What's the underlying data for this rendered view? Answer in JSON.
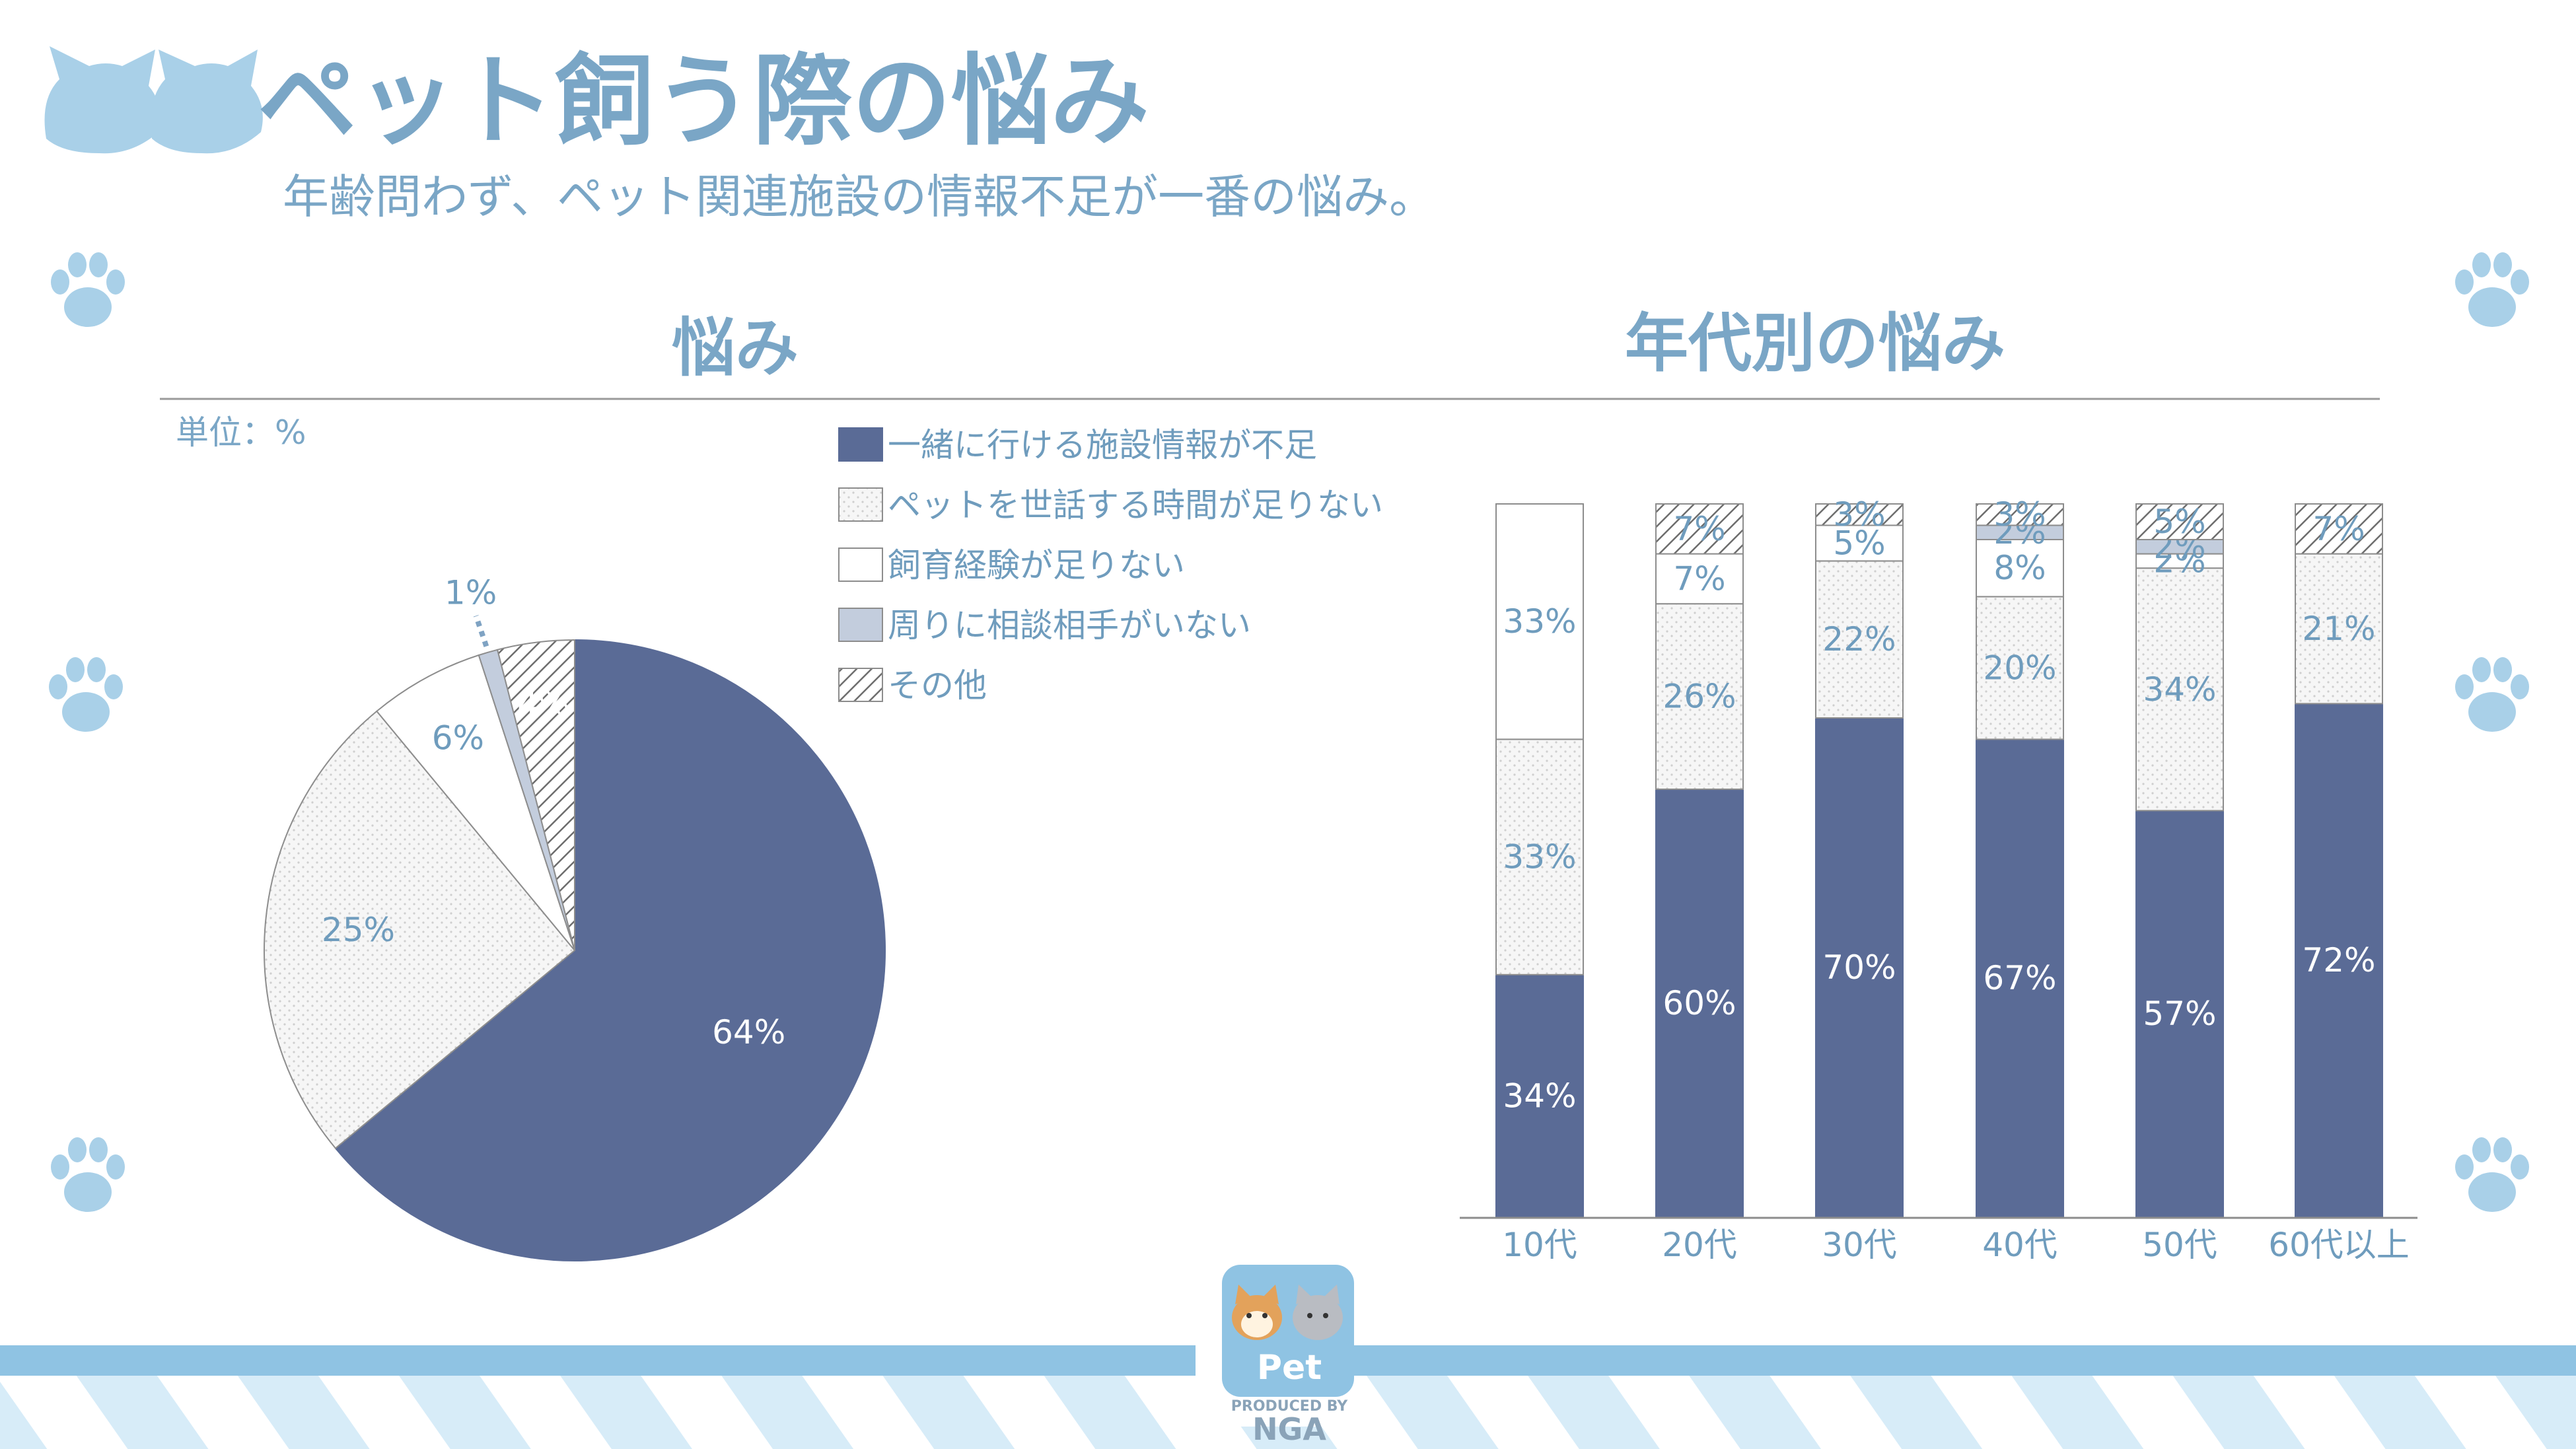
{
  "header": {
    "title": "ペット飼う際の悩み",
    "subtitle": "年齢問わず、ペット関連施設の情報不足が一番の悩み。"
  },
  "sections": {
    "left_title": "悩み",
    "right_title": "年代別の悩み",
    "unit": "単位：%"
  },
  "logo": {
    "label": "Pet",
    "produced_by": "PRODUCED BY",
    "brand": "NGA"
  },
  "colors": {
    "accent": "#7aa6c6",
    "series_navy": "#5a6b96",
    "series_light": "#c3cddd",
    "stripe": "#8fc3e3",
    "stripe_light": "#d7ecf8"
  },
  "icons": [
    "cat-heads-icon",
    "paw-icon",
    "pet-logo-icon"
  ],
  "chart_data": [
    {
      "type": "pie",
      "title": "悩み",
      "unit": "単位：%",
      "legend_position": "top-right",
      "slices": [
        {
          "name": "一緒に行ける施設情報が不足",
          "value": 64,
          "label": "64%"
        },
        {
          "name": "ペットを世話する時間が足りない",
          "value": 25,
          "label": "25%"
        },
        {
          "name": "飼育経験が足りない",
          "value": 6,
          "label": "6%"
        },
        {
          "name": "周りに相談相手がいない",
          "value": 1,
          "label": "1%"
        },
        {
          "name": "その他",
          "value": 4,
          "label": "4%"
        }
      ]
    },
    {
      "type": "bar",
      "stacked": true,
      "title": "年代別の悩み",
      "categories": [
        "10代",
        "20代",
        "30代",
        "40代",
        "50代",
        "60代以上"
      ],
      "series": [
        {
          "name": "一緒に行ける施設情報が不足",
          "values": [
            34,
            60,
            70,
            67,
            57,
            72
          ],
          "labels": [
            "34%",
            "60%",
            "70%",
            "67%",
            "57%",
            "72%"
          ]
        },
        {
          "name": "ペットを世話する時間が足りない",
          "values": [
            33,
            26,
            22,
            20,
            34,
            21
          ],
          "labels": [
            "33%",
            "26%",
            "22%",
            "20%",
            "34%",
            "21%"
          ]
        },
        {
          "name": "飼育経験が足りない",
          "values": [
            33,
            7,
            5,
            8,
            2,
            0
          ],
          "labels": [
            "33%",
            "7%",
            "5%",
            "8%",
            "2%",
            ""
          ]
        },
        {
          "name": "周りに相談相手がいない",
          "values": [
            0,
            0,
            0,
            2,
            2,
            0
          ],
          "labels": [
            "",
            "",
            "",
            "2%",
            "2%",
            ""
          ]
        },
        {
          "name": "その他",
          "values": [
            0,
            7,
            3,
            3,
            5,
            7
          ],
          "labels": [
            "",
            "7%",
            "3%",
            "3%",
            "5%",
            "7%"
          ]
        }
      ],
      "ylim": [
        0,
        100
      ]
    }
  ]
}
